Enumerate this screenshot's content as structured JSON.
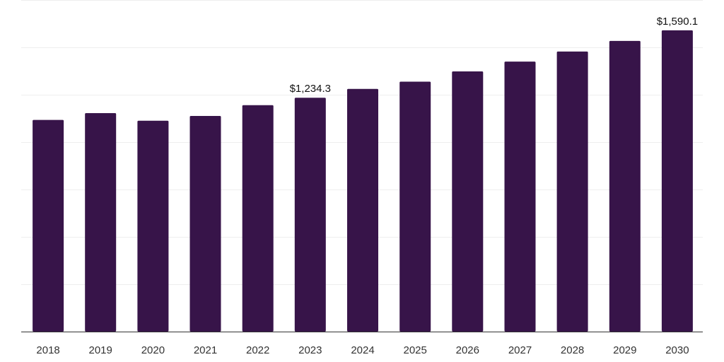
{
  "chart_data": {
    "type": "bar",
    "categories": [
      "2018",
      "2019",
      "2020",
      "2021",
      "2022",
      "2023",
      "2024",
      "2025",
      "2026",
      "2027",
      "2028",
      "2029",
      "2030"
    ],
    "values": [
      1117,
      1153,
      1113,
      1138,
      1195,
      1234.3,
      1281,
      1319,
      1373,
      1425,
      1478,
      1534,
      1590.1
    ],
    "data_labels": [
      {
        "category": "2023",
        "text": "$1,234.3"
      },
      {
        "category": "2030",
        "text": "$1,590.1"
      }
    ],
    "title": "",
    "xlabel": "",
    "ylabel": "",
    "ylim": [
      0,
      1750
    ],
    "y_gridlines": [
      0,
      250,
      500,
      750,
      1000,
      1250,
      1500,
      1750
    ],
    "grid": true,
    "legend": "none",
    "bar_color": "#371449"
  }
}
